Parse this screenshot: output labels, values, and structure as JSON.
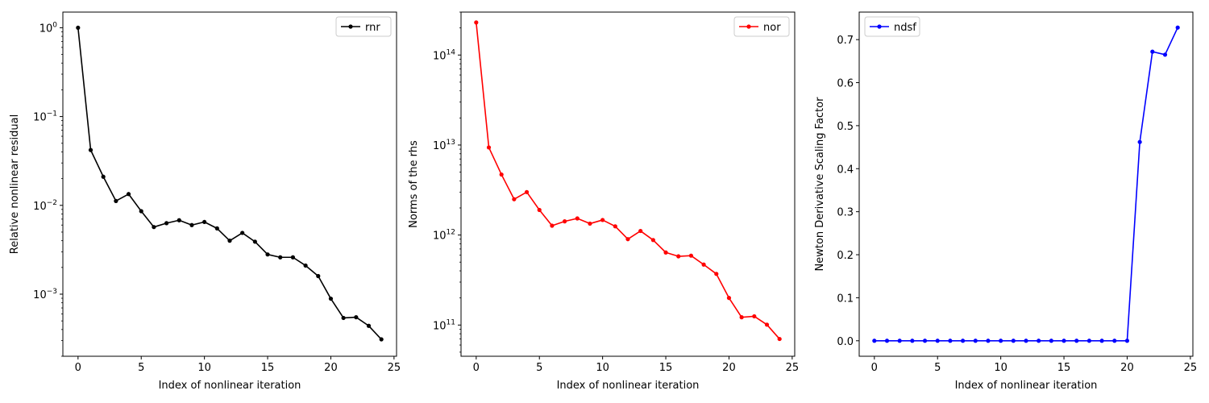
{
  "chart_data": [
    {
      "type": "line",
      "scale": "log",
      "xlabel": "Index of nonlinear iteration",
      "ylabel": "Relative nonlinear residual",
      "xlim": [
        -1.2,
        25.2
      ],
      "ylim": [
        0.0002,
        1.5
      ],
      "xticks": [
        0,
        5,
        10,
        15,
        20,
        25
      ],
      "ytick_exponents": [
        0,
        -1,
        -2,
        -3
      ],
      "legend_position": "upper right",
      "series": [
        {
          "name": "rnr",
          "color": "#000000",
          "x": [
            0,
            1,
            2,
            3,
            4,
            5,
            6,
            7,
            8,
            9,
            10,
            11,
            12,
            13,
            14,
            15,
            16,
            17,
            18,
            19,
            20,
            21,
            22,
            23,
            24
          ],
          "y": [
            1.0,
            0.042,
            0.021,
            0.0112,
            0.0134,
            0.0086,
            0.0057,
            0.0063,
            0.0068,
            0.006,
            0.0065,
            0.0055,
            0.004,
            0.0049,
            0.0039,
            0.0028,
            0.0026,
            0.0026,
            0.0021,
            0.0016,
            0.00089,
            0.00054,
            0.00055,
            0.00044,
            0.00031
          ]
        }
      ]
    },
    {
      "type": "line",
      "scale": "log",
      "xlabel": "Index of nonlinear iteration",
      "ylabel": "Norms of the rhs",
      "xlim": [
        -1.2,
        25.2
      ],
      "ylim": [
        45000000000,
        300000000000000
      ],
      "xticks": [
        0,
        5,
        10,
        15,
        20,
        25
      ],
      "ytick_exponents": [
        14,
        13,
        12,
        11
      ],
      "legend_position": "upper right",
      "series": [
        {
          "name": "nor",
          "color": "#ff0000",
          "x": [
            0,
            1,
            2,
            3,
            4,
            5,
            6,
            7,
            8,
            9,
            10,
            11,
            12,
            13,
            14,
            15,
            16,
            17,
            18,
            19,
            20,
            21,
            22,
            23,
            24
          ],
          "y": [
            230000000000000,
            9400000000000,
            4700000000000,
            2500000000000,
            3000000000000,
            1900000000000,
            1270000000000,
            1420000000000,
            1530000000000,
            1340000000000,
            1470000000000,
            1250000000000,
            900000000000,
            1110000000000,
            880000000000,
            640000000000,
            580000000000,
            590000000000,
            470000000000,
            370000000000,
            200000000000,
            122000000000,
            125000000000,
            101000000000,
            70000000000
          ]
        }
      ]
    },
    {
      "type": "line",
      "scale": "linear",
      "xlabel": "Index of nonlinear iteration",
      "ylabel": "Newton Derivative Scaling Factor",
      "xlim": [
        -1.2,
        25.2
      ],
      "ylim": [
        -0.036,
        0.764
      ],
      "xticks": [
        0,
        5,
        10,
        15,
        20,
        25
      ],
      "yticks": [
        "0.0",
        "0.1",
        "0.2",
        "0.3",
        "0.4",
        "0.5",
        "0.6",
        "0.7"
      ],
      "legend_position": "upper left",
      "series": [
        {
          "name": "ndsf",
          "color": "#0000ff",
          "x": [
            0,
            1,
            2,
            3,
            4,
            5,
            6,
            7,
            8,
            9,
            10,
            11,
            12,
            13,
            14,
            15,
            16,
            17,
            18,
            19,
            20,
            21,
            22,
            23,
            24
          ],
          "y": [
            0,
            0,
            0,
            0,
            0,
            0,
            0,
            0,
            0,
            0,
            0,
            0,
            0,
            0,
            0,
            0,
            0,
            0,
            0,
            0,
            0,
            0.462,
            0.672,
            0.665,
            0.728
          ]
        }
      ]
    }
  ]
}
